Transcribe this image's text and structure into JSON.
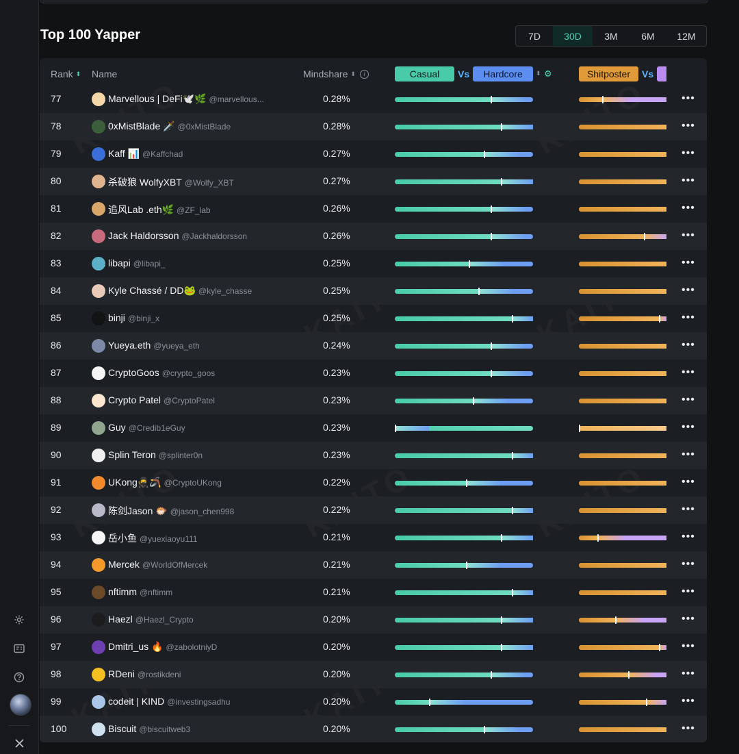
{
  "title": "Top 100 Yapper",
  "periods": [
    {
      "label": "7D",
      "active": false
    },
    {
      "label": "30D",
      "active": true
    },
    {
      "label": "3M",
      "active": false
    },
    {
      "label": "6M",
      "active": false
    },
    {
      "label": "12M",
      "active": false
    }
  ],
  "table": {
    "headers": {
      "rank": "Rank",
      "name": "Name",
      "mindshare": "Mindshare",
      "casual": "Casual",
      "vs": "Vs",
      "hardcore": "Hardcore",
      "shitposter": "Shitposter"
    },
    "rows": [
      {
        "rank": "77",
        "name": "Marvellous | DeFi🕊️🌿",
        "handle": "@marvellous...",
        "mindshare": "0.28%",
        "casual": 0.7,
        "shitposter": 0.27,
        "avatar_color": "#f3d7a9"
      },
      {
        "rank": "78",
        "name": "0xMistBlade 🗡️",
        "handle": "@0xMistBlade",
        "mindshare": "0.28%",
        "casual": 0.77,
        "shitposter": 1.0,
        "avatar_color": "#3b5f3a"
      },
      {
        "rank": "79",
        "name": "Kaff 📊",
        "handle": "@Kaffchad",
        "mindshare": "0.27%",
        "casual": 0.65,
        "shitposter": 1.0,
        "avatar_color": "#3a6fd8"
      },
      {
        "rank": "80",
        "name": "杀破狼 WolfyXBT",
        "handle": "@Wolfy_XBT",
        "mindshare": "0.27%",
        "casual": 0.77,
        "shitposter": 1.0,
        "avatar_color": "#e0b48f"
      },
      {
        "rank": "81",
        "name": "追风Lab .eth🌿",
        "handle": "@ZF_lab",
        "mindshare": "0.26%",
        "casual": 0.7,
        "shitposter": 1.0,
        "avatar_color": "#d9a66a"
      },
      {
        "rank": "82",
        "name": "Jack Haldorsson",
        "handle": "@Jackhaldorsson",
        "mindshare": "0.26%",
        "casual": 0.7,
        "shitposter": 0.75,
        "avatar_color": "#c76a7d"
      },
      {
        "rank": "83",
        "name": "libapi",
        "handle": "@libapi_",
        "mindshare": "0.25%",
        "casual": 0.54,
        "shitposter": 1.0,
        "avatar_color": "#5bb0c7"
      },
      {
        "rank": "84",
        "name": "Kyle Chassé / DD🐸",
        "handle": "@kyle_chasse",
        "mindshare": "0.25%",
        "casual": 0.61,
        "shitposter": 1.0,
        "avatar_color": "#e9c9b8"
      },
      {
        "rank": "85",
        "name": "binji",
        "handle": "@binji_x",
        "mindshare": "0.25%",
        "casual": 0.85,
        "shitposter": 0.92,
        "avatar_color": "#111315"
      },
      {
        "rank": "86",
        "name": "Yueya.eth",
        "handle": "@yueya_eth",
        "mindshare": "0.24%",
        "casual": 0.7,
        "shitposter": 1.0,
        "avatar_color": "#7c8aa8"
      },
      {
        "rank": "87",
        "name": "CryptoGoos",
        "handle": "@crypto_goos",
        "mindshare": "0.23%",
        "casual": 0.7,
        "shitposter": 1.0,
        "avatar_color": "#f5f5f5"
      },
      {
        "rank": "88",
        "name": "Crypto Patel",
        "handle": "@CryptoPatel",
        "mindshare": "0.23%",
        "casual": 0.57,
        "shitposter": 1.0,
        "avatar_color": "#fbe7d0"
      },
      {
        "rank": "89",
        "name": "Guy",
        "handle": "@Credib1eGuy",
        "mindshare": "0.23%",
        "casual": 0.0,
        "shitposter": 0.0,
        "avatar_color": "#8fa58d"
      },
      {
        "rank": "90",
        "name": "Splin Teron",
        "handle": "@splinter0n",
        "mindshare": "0.23%",
        "casual": 0.85,
        "shitposter": 1.0,
        "avatar_color": "#f0f0f0"
      },
      {
        "rank": "91",
        "name": "UKong🥷🪃",
        "handle": "@CryptoUKong",
        "mindshare": "0.22%",
        "casual": 0.52,
        "shitposter": 1.0,
        "avatar_color": "#f08a2c"
      },
      {
        "rank": "92",
        "name": "陈剑Jason 🐡",
        "handle": "@jason_chen998",
        "mindshare": "0.22%",
        "casual": 0.85,
        "shitposter": 1.0,
        "avatar_color": "#b8b8c8"
      },
      {
        "rank": "93",
        "name": "岳小鱼",
        "handle": "@yuexiaoyu111",
        "mindshare": "0.21%",
        "casual": 0.77,
        "shitposter": 0.22,
        "avatar_color": "#f5f5f5"
      },
      {
        "rank": "94",
        "name": "Mercek",
        "handle": "@WorldOfMercek",
        "mindshare": "0.21%",
        "casual": 0.52,
        "shitposter": 1.0,
        "avatar_color": "#f39a2a"
      },
      {
        "rank": "95",
        "name": "nftimm",
        "handle": "@nftimm",
        "mindshare": "0.21%",
        "casual": 0.85,
        "shitposter": 1.0,
        "avatar_color": "#6b4a2a"
      },
      {
        "rank": "96",
        "name": "Haezl",
        "handle": "@Haezl_Crypto",
        "mindshare": "0.20%",
        "casual": 0.77,
        "shitposter": 0.42,
        "avatar_color": "#1c1c1e"
      },
      {
        "rank": "97",
        "name": "Dmitri_us 🔥",
        "handle": "@zabolotniyD",
        "mindshare": "0.20%",
        "casual": 0.77,
        "shitposter": 0.92,
        "avatar_color": "#6d3fb0"
      },
      {
        "rank": "98",
        "name": "RDeni",
        "handle": "@rostikdeni",
        "mindshare": "0.20%",
        "casual": 0.7,
        "shitposter": 0.57,
        "avatar_color": "#f2c020"
      },
      {
        "rank": "99",
        "name": "codeit | KIND",
        "handle": "@investingsadhu",
        "mindshare": "0.20%",
        "casual": 0.25,
        "shitposter": 0.77,
        "avatar_color": "#a9c6e8"
      },
      {
        "rank": "100",
        "name": "Biscuit",
        "handle": "@biscuitweb3",
        "mindshare": "0.20%",
        "casual": 0.65,
        "shitposter": 1.0,
        "avatar_color": "#cfe0ef"
      }
    ]
  },
  "watermark_text": "KAITO",
  "sidebar_icons": [
    "gear-icon",
    "id-card-icon",
    "help-icon",
    "avatar",
    "x-logo-icon"
  ],
  "colors": {
    "accent": "#4fd1b0",
    "casual": "#49cba9",
    "hardcore": "#6d9ef2",
    "shitposter": "#d99232",
    "vs": "#5fb4ff"
  }
}
